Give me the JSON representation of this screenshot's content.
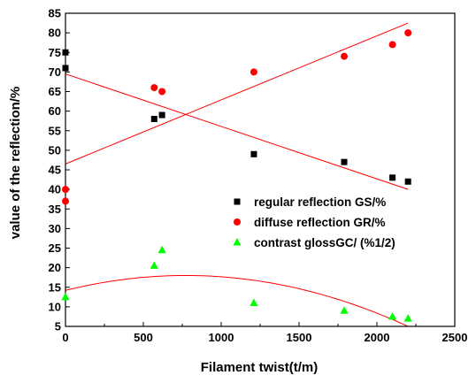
{
  "chart_data": {
    "type": "scatter",
    "xlabel": "Filament twist(t/m)",
    "ylabel": "value of the reflection/%",
    "xlim": [
      0,
      2500
    ],
    "ylim": [
      5,
      85
    ],
    "xticks": [
      0,
      500,
      1000,
      1500,
      2000,
      2500
    ],
    "yticks": [
      5,
      10,
      15,
      20,
      25,
      30,
      35,
      40,
      45,
      50,
      55,
      60,
      65,
      70,
      75,
      80,
      85
    ],
    "grid": false,
    "legend_position": "right",
    "series": [
      {
        "name": "regular reflection GS/%",
        "marker": "square",
        "color": "#000000",
        "points": [
          [
            0,
            75
          ],
          [
            0,
            71
          ],
          [
            570,
            58
          ],
          [
            620,
            59
          ],
          [
            1210,
            49
          ],
          [
            1790,
            47
          ],
          [
            2100,
            43
          ],
          [
            2200,
            42
          ]
        ],
        "fit": {
          "kind": "linear",
          "from": [
            0,
            69.5
          ],
          "to": [
            2200,
            40
          ]
        }
      },
      {
        "name": "diffuse reflection GR/%",
        "marker": "circle",
        "color": "#ff0000",
        "points": [
          [
            0,
            40
          ],
          [
            0,
            37
          ],
          [
            570,
            66
          ],
          [
            620,
            65
          ],
          [
            1210,
            70
          ],
          [
            1790,
            74
          ],
          [
            2100,
            77
          ],
          [
            2200,
            80
          ]
        ],
        "fit": {
          "kind": "linear",
          "from": [
            0,
            46.5
          ],
          "to": [
            2200,
            82.5
          ]
        }
      },
      {
        "name": "contrast glossGC/ (%1/2)",
        "marker": "triangle",
        "color": "#00ff00",
        "points": [
          [
            0,
            12.5
          ],
          [
            570,
            20.5
          ],
          [
            620,
            24.5
          ],
          [
            1210,
            11
          ],
          [
            1790,
            9
          ],
          [
            2100,
            7.5
          ],
          [
            2200,
            7
          ]
        ],
        "fit": {
          "kind": "quadratic",
          "points": [
            [
              0,
              14.2
            ],
            [
              800,
              18
            ],
            [
              2200,
              5
            ]
          ]
        }
      }
    ],
    "fit_line_color": "#ff0000"
  }
}
